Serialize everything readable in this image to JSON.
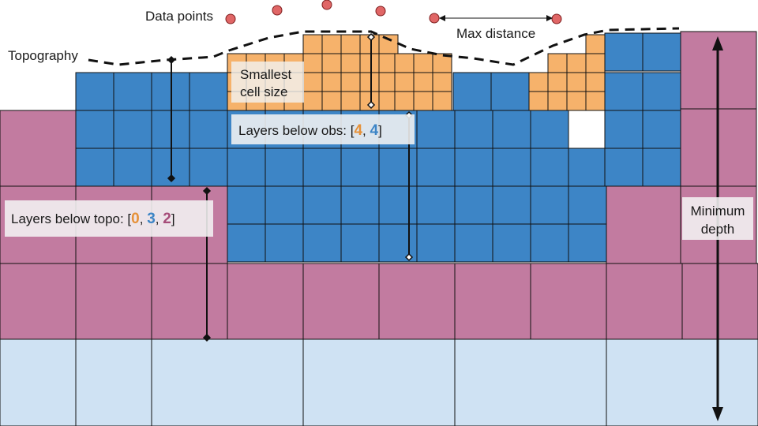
{
  "labels": {
    "data_points": "Data points",
    "max_distance": "Max distance",
    "topography": "Topography",
    "smallest_cell_size_line1": "Smallest",
    "smallest_cell_size_line2": "cell size",
    "layers_below_obs_prefix": "Layers below obs: [",
    "layers_below_obs_values": [
      "4",
      "4"
    ],
    "layers_below_topo_prefix": "Layers below topo: [",
    "layers_below_topo_values": [
      "0",
      "3",
      "2"
    ],
    "separator": ",",
    "close_bracket": "]",
    "minimum_depth_line1": "Minimum",
    "minimum_depth_line2": "depth"
  },
  "colors": {
    "fine_cells": "#f6b26b",
    "medium_cells": "#3d85c6",
    "coarse_cells": "#c27ba0",
    "padding_cells": "#cfe2f3",
    "data_point_fill": "#e06666",
    "label_box": "#f3f3f3",
    "value_first": "#e69138",
    "value_second": "#3d85c6",
    "value_third": "#a64d79"
  }
}
